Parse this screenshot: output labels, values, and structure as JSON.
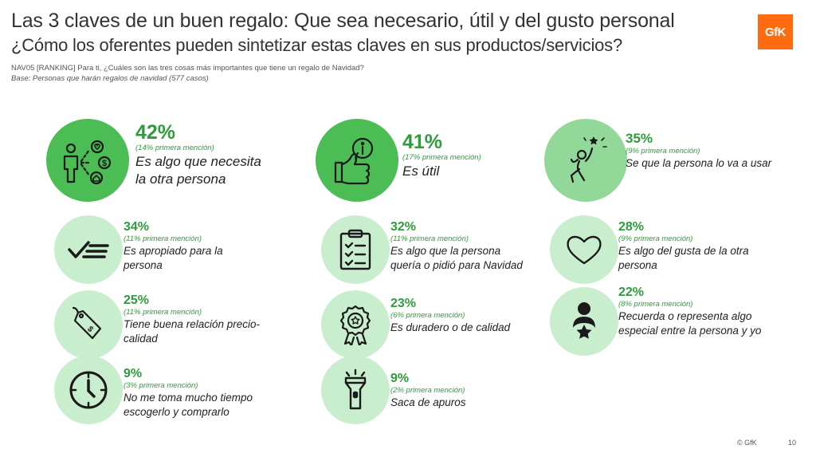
{
  "header": {
    "title": "Las 3 claves de un buen regalo: Que sea necesario, útil y del gusto personal",
    "subtitle": "¿Cómo los oferentes pueden sintetizar estas claves en sus productos/servicios?",
    "question": "NAV05 [RANKING] Para ti, ¿Cuáles son las tres cosas más importantes que tiene un regalo de Navidad?",
    "base": "Base: Personas que harán regalos de navidad (577 casos)",
    "logo": "GfK"
  },
  "colors": {
    "dark": "#4cbd55",
    "mid": "#92d999",
    "light": "#c9eece",
    "accent": "#2e9c3a",
    "brand": "#ff6c10"
  },
  "items": [
    {
      "icon": "person-network-icon",
      "pct": "42%",
      "mention": "(14% primera mención)",
      "text": "Es algo que necesita la otra persona"
    },
    {
      "icon": "thumbs-up-info-icon",
      "pct": "41%",
      "mention": "(17% primera mención)",
      "text": "Es útil"
    },
    {
      "icon": "celebrating-person-icon",
      "pct": "35%",
      "mention": "(9% primera mención)",
      "text": "Se que la persona lo va a usar"
    },
    {
      "icon": "checkmark-lines-icon",
      "pct": "34%",
      "mention": "(11% primera mención)",
      "text": "Es apropiado para la persona"
    },
    {
      "icon": "clipboard-checklist-icon",
      "pct": "32%",
      "mention": "(11% primera mención)",
      "text": "Es algo que la persona quería o pidió para Navidad"
    },
    {
      "icon": "heart-icon",
      "pct": "28%",
      "mention": "(9% primera mención)",
      "text": "Es algo del gusta de la otra persona"
    },
    {
      "icon": "price-tag-icon",
      "pct": "25%",
      "mention": "(11% primera mención)",
      "text": "Tiene buena relación precio-calidad"
    },
    {
      "icon": "award-badge-icon",
      "pct": "23%",
      "mention": "(6% primera mención)",
      "text": "Es duradero o de calidad"
    },
    {
      "icon": "person-star-icon",
      "pct": "22%",
      "mention": "(8% primera mención)",
      "text": "Recuerda o representa algo especial entre la persona y yo"
    },
    {
      "icon": "clock-icon",
      "pct": "9%",
      "mention": "(3% primera mención)",
      "text": "No me toma mucho tiempo escogerlo y comprarlo"
    },
    {
      "icon": "flashlight-icon",
      "pct": "9%",
      "mention": "(2% primera mención)",
      "text": "Saca de apuros"
    }
  ],
  "footer": {
    "copyright": "© GfK",
    "page": "10"
  }
}
